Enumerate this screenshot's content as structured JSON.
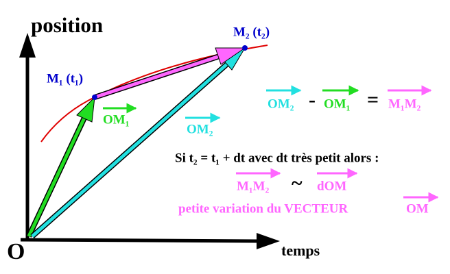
{
  "axes": {
    "y_label": "position",
    "x_label": "temps",
    "origin": "O"
  },
  "points": [
    {
      "label": "M₁ (t₁)"
    },
    {
      "label": "M₂ (t₂)"
    }
  ],
  "vectors": [
    {
      "label": "OM₁"
    },
    {
      "label": "OM₂"
    }
  ],
  "equation": {
    "term1": "OM₂",
    "minus": "-",
    "term2": "OM₁",
    "equals": "=",
    "result": "M₁M₂"
  },
  "note": "Si t₂ = t₁ + dt avec dt très petit alors :",
  "approx": {
    "left": "M₁M₂",
    "symbol": "~",
    "right": "dOM"
  },
  "caption": {
    "text": "petite variation du VECTEUR",
    "vector": "OM"
  }
}
